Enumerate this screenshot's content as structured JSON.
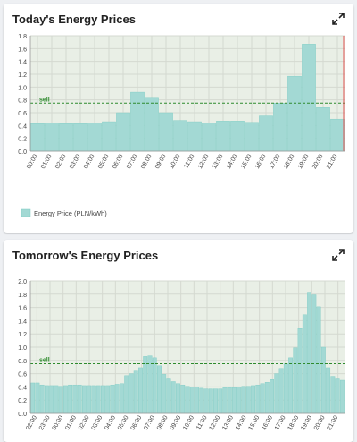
{
  "cards": [
    {
      "title": "Today's Energy Prices"
    },
    {
      "title": "Tomorrow's Energy Prices"
    }
  ],
  "icons": {
    "expand": "expand-arrows-icon"
  },
  "colors": {
    "bar": "#a3d9d4",
    "bar_stroke": "#7ccbc4",
    "plot_bg": "#e9efe6",
    "sell_line": "#2e8b2e",
    "now_line": "#e05050"
  },
  "chart_data": [
    {
      "type": "bar",
      "title": "Today's Energy Prices",
      "ylim": [
        0,
        1.8
      ],
      "yticks": [
        "0.0",
        "0.2",
        "0.4",
        "0.6",
        "0.8",
        "1.0",
        "1.2",
        "1.4",
        "1.6",
        "1.8"
      ],
      "xtick_labels": [
        "00:00",
        "01:00",
        "02:00",
        "03:00",
        "04:00",
        "05:00",
        "06:00",
        "07:00",
        "08:00",
        "09:00",
        "10:00",
        "11:00",
        "12:00",
        "13:00",
        "14:00",
        "15:00",
        "16:00",
        "17:00",
        "18:00",
        "19:00",
        "20:00",
        "21:00"
      ],
      "values": [
        0.43,
        0.44,
        0.43,
        0.43,
        0.44,
        0.46,
        0.6,
        0.92,
        0.84,
        0.6,
        0.48,
        0.46,
        0.44,
        0.47,
        0.47,
        0.45,
        0.55,
        0.75,
        1.17,
        1.67,
        0.68,
        0.5
      ],
      "grid": true,
      "sell_threshold": {
        "label": "sell",
        "value": 0.75
      },
      "now_marker": true,
      "legend": {
        "label": "Energy Price (PLN/kWh)",
        "placement": "bottom-left"
      }
    },
    {
      "type": "bar",
      "title": "Tomorrow's Energy Prices",
      "ylim": [
        0,
        2.0
      ],
      "yticks": [
        "0.0",
        "0.2",
        "0.4",
        "0.6",
        "0.8",
        "1.0",
        "1.2",
        "1.4",
        "1.6",
        "1.8",
        "2.0"
      ],
      "xtick_labels": [
        "22:00",
        "23:00",
        "00:00",
        "01:00",
        "02:00",
        "03:00",
        "04:00",
        "05:00",
        "06:00",
        "07:00",
        "08:00",
        "09:00",
        "10:00",
        "11:00",
        "12:00",
        "13:00",
        "14:00",
        "15:00",
        "16:00",
        "17:00",
        "18:00",
        "19:00",
        "20:00",
        "21:00"
      ],
      "values": [
        0.46,
        0.46,
        0.43,
        0.42,
        0.42,
        0.42,
        0.41,
        0.42,
        0.43,
        0.43,
        0.43,
        0.42,
        0.42,
        0.42,
        0.42,
        0.42,
        0.42,
        0.43,
        0.44,
        0.45,
        0.57,
        0.6,
        0.64,
        0.69,
        0.86,
        0.87,
        0.84,
        0.72,
        0.59,
        0.52,
        0.48,
        0.45,
        0.43,
        0.41,
        0.4,
        0.4,
        0.38,
        0.37,
        0.37,
        0.37,
        0.37,
        0.39,
        0.39,
        0.39,
        0.4,
        0.41,
        0.41,
        0.42,
        0.43,
        0.45,
        0.47,
        0.51,
        0.6,
        0.68,
        0.75,
        0.84,
        0.99,
        1.28,
        1.49,
        1.83,
        1.79,
        1.61,
        1.0,
        0.69,
        0.56,
        0.52,
        0.5
      ],
      "grid": true,
      "sell_threshold": {
        "label": "sell",
        "value": 0.75
      }
    }
  ]
}
